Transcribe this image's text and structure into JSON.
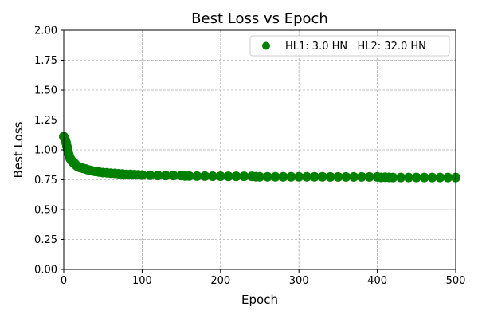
{
  "chart_data": {
    "type": "scatter",
    "title": "Best Loss vs Epoch",
    "xlabel": "Epoch",
    "ylabel": "Best Loss",
    "xlim": [
      0,
      500
    ],
    "ylim": [
      0,
      2.0
    ],
    "xticks": [
      0,
      100,
      200,
      300,
      400,
      500
    ],
    "xtick_labels": [
      "0",
      "100",
      "200",
      "300",
      "400",
      "500"
    ],
    "yticks": [
      0,
      0.25,
      0.5,
      0.75,
      1.0,
      1.25,
      1.5,
      1.75,
      2.0
    ],
    "ytick_labels": [
      "0.00",
      "0.25",
      "0.50",
      "0.75",
      "1.00",
      "1.25",
      "1.50",
      "1.75",
      "2.00"
    ],
    "grid": true,
    "legend_position": "top-right",
    "series": [
      {
        "name": "HL1: 3.0 HN   HL2: 32.0 HN",
        "color": "#008000",
        "marker": "circle",
        "x": [
          0,
          1,
          2,
          3,
          4,
          5,
          6,
          7,
          8,
          9,
          10,
          12,
          14,
          16,
          18,
          20,
          22,
          25,
          28,
          30,
          33,
          36,
          40,
          45,
          50,
          55,
          60,
          65,
          70,
          75,
          80,
          85,
          90,
          95,
          100,
          110,
          120,
          130,
          140,
          150,
          155,
          160,
          170,
          180,
          190,
          200,
          210,
          220,
          230,
          240,
          245,
          250,
          260,
          270,
          280,
          290,
          300,
          310,
          320,
          330,
          340,
          350,
          360,
          370,
          380,
          390,
          400,
          405,
          410,
          415,
          420,
          430,
          440,
          450,
          460,
          470,
          480,
          490,
          500
        ],
        "y": [
          1.11,
          1.1,
          1.08,
          1.06,
          1.03,
          1.0,
          0.97,
          0.95,
          0.93,
          0.92,
          0.91,
          0.895,
          0.885,
          0.87,
          0.86,
          0.855,
          0.85,
          0.845,
          0.84,
          0.835,
          0.83,
          0.825,
          0.82,
          0.815,
          0.81,
          0.808,
          0.805,
          0.803,
          0.8,
          0.798,
          0.795,
          0.795,
          0.793,
          0.792,
          0.79,
          0.788,
          0.787,
          0.786,
          0.786,
          0.785,
          0.782,
          0.782,
          0.781,
          0.781,
          0.78,
          0.78,
          0.779,
          0.779,
          0.779,
          0.779,
          0.776,
          0.775,
          0.775,
          0.775,
          0.775,
          0.775,
          0.775,
          0.775,
          0.775,
          0.775,
          0.774,
          0.774,
          0.774,
          0.774,
          0.774,
          0.774,
          0.774,
          0.77,
          0.772,
          0.77,
          0.769,
          0.769,
          0.769,
          0.769,
          0.769,
          0.769,
          0.769,
          0.769,
          0.769
        ]
      }
    ]
  }
}
